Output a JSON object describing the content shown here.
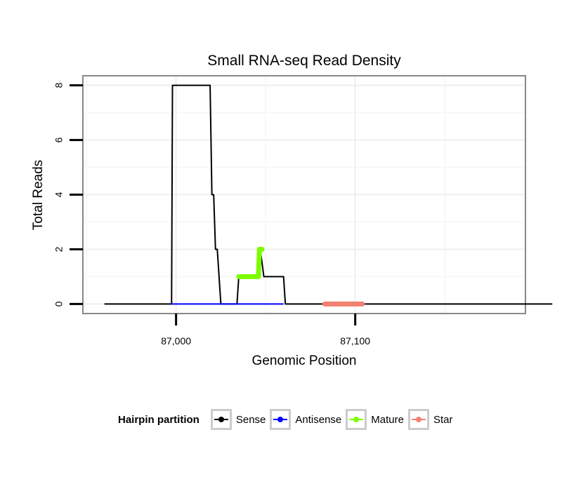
{
  "chart_data": {
    "type": "line",
    "title": "Small RNA-seq Read Density",
    "xlabel": "Genomic Position",
    "ylabel": "Total Reads",
    "xlim": [
      86948,
      87195
    ],
    "ylim": [
      -0.35,
      8.35
    ],
    "x_ticks": [
      87000,
      87100
    ],
    "x_tick_labels": [
      "87,000",
      "87,100"
    ],
    "y_ticks": [
      0,
      2,
      4,
      6,
      8
    ],
    "y_tick_labels": [
      "0",
      "2",
      "4",
      "6",
      "8"
    ],
    "grid": true,
    "legend": {
      "title": "Hairpin partition",
      "position": "bottom",
      "entries": [
        "Sense",
        "Antisense",
        "Mature",
        "Star"
      ]
    },
    "series": [
      {
        "name": "Sense",
        "color": "#000000",
        "x": [
          86960,
          86997.5,
          86998,
          87019,
          87020,
          87021,
          87022,
          87023,
          87025,
          87026,
          87028,
          87034,
          87035,
          87045,
          87046,
          87047,
          87049,
          87060,
          87061,
          87062,
          87110,
          87210
        ],
        "values": [
          0,
          0,
          8,
          8,
          4,
          4,
          2,
          2,
          0,
          0,
          0,
          0,
          1,
          1,
          2,
          2,
          1,
          1,
          0,
          0,
          0,
          0
        ]
      },
      {
        "name": "Antisense",
        "color": "#0000ff",
        "x": [
          86997,
          87060
        ],
        "values": [
          0,
          0
        ]
      },
      {
        "name": "Mature",
        "color": "#7cfc00",
        "x": [
          87035,
          87037,
          87040,
          87043,
          87046,
          87046.5,
          87047,
          87048
        ],
        "values": [
          1,
          1,
          1,
          1,
          1,
          2,
          2,
          2
        ]
      },
      {
        "name": "Star",
        "color": "#f08070",
        "x": [
          87083,
          87086,
          87089,
          87092,
          87095,
          87098,
          87101,
          87104
        ],
        "values": [
          0,
          0,
          0,
          0,
          0,
          0,
          0,
          0
        ]
      }
    ]
  }
}
